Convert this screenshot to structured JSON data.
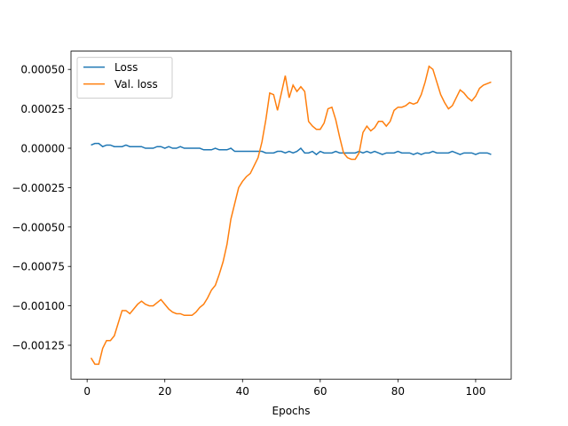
{
  "chart_data": {
    "type": "line",
    "xlabel": "Epochs",
    "x": [
      1,
      2,
      3,
      4,
      5,
      6,
      7,
      8,
      9,
      10,
      11,
      12,
      13,
      14,
      15,
      16,
      17,
      18,
      19,
      20,
      21,
      22,
      23,
      24,
      25,
      26,
      27,
      28,
      29,
      30,
      31,
      32,
      33,
      34,
      35,
      36,
      37,
      38,
      39,
      40,
      41,
      42,
      43,
      44,
      45,
      46,
      47,
      48,
      49,
      50,
      51,
      52,
      53,
      54,
      55,
      56,
      57,
      58,
      59,
      60,
      61,
      62,
      63,
      64,
      65,
      66,
      67,
      68,
      69,
      70,
      71,
      72,
      73,
      74,
      75,
      76,
      77,
      78,
      79,
      80,
      81,
      82,
      83,
      84,
      85,
      86,
      87,
      88,
      89,
      90,
      91,
      92,
      93,
      94,
      95,
      96,
      97,
      98,
      99,
      100,
      101,
      102,
      103,
      104
    ],
    "series": [
      {
        "name": "Loss",
        "color": "#1f77b4",
        "values": [
          2e-05,
          3e-05,
          3e-05,
          1e-05,
          2e-05,
          2e-05,
          1e-05,
          1e-05,
          1e-05,
          2e-05,
          1e-05,
          1e-05,
          1e-05,
          1e-05,
          0,
          0,
          0,
          1e-05,
          1e-05,
          0,
          1e-05,
          0,
          0,
          1e-05,
          0,
          0,
          0,
          0,
          0,
          -1e-05,
          -1e-05,
          -1e-05,
          0,
          -1e-05,
          -1e-05,
          -1e-05,
          0,
          -2e-05,
          -2e-05,
          -2e-05,
          -2e-05,
          -2e-05,
          -2e-05,
          -2e-05,
          -2e-05,
          -3e-05,
          -3e-05,
          -3e-05,
          -2e-05,
          -2e-05,
          -3e-05,
          -2e-05,
          -3e-05,
          -2e-05,
          0,
          -3e-05,
          -3e-05,
          -2e-05,
          -4e-05,
          -2e-05,
          -3e-05,
          -3e-05,
          -3e-05,
          -2e-05,
          -3e-05,
          -3e-05,
          -3e-05,
          -3e-05,
          -3e-05,
          -2e-05,
          -3e-05,
          -2e-05,
          -3e-05,
          -2e-05,
          -3e-05,
          -4e-05,
          -3e-05,
          -3e-05,
          -3e-05,
          -2e-05,
          -3e-05,
          -3e-05,
          -3e-05,
          -4e-05,
          -3e-05,
          -4e-05,
          -3e-05,
          -3e-05,
          -2e-05,
          -3e-05,
          -3e-05,
          -3e-05,
          -3e-05,
          -2e-05,
          -3e-05,
          -4e-05,
          -3e-05,
          -3e-05,
          -3e-05,
          -4e-05,
          -3e-05,
          -3e-05,
          -3e-05,
          -4e-05
        ]
      },
      {
        "name": "Val. loss",
        "color": "#ff7f0e",
        "values": [
          -0.00133,
          -0.00137,
          -0.00137,
          -0.00127,
          -0.00122,
          -0.00122,
          -0.00119,
          -0.00111,
          -0.00103,
          -0.00103,
          -0.00105,
          -0.00102,
          -0.00099,
          -0.00097,
          -0.00099,
          -0.001,
          -0.001,
          -0.00098,
          -0.00096,
          -0.00099,
          -0.00102,
          -0.00104,
          -0.00105,
          -0.00105,
          -0.00106,
          -0.00106,
          -0.00106,
          -0.00104,
          -0.00101,
          -0.00099,
          -0.00095,
          -0.0009,
          -0.00087,
          -0.0008,
          -0.00072,
          -0.00061,
          -0.00045,
          -0.00035,
          -0.00025,
          -0.00021,
          -0.00018,
          -0.00016,
          -0.00011,
          -6e-05,
          4e-05,
          0.00018,
          0.00035,
          0.00034,
          0.00024,
          0.00035,
          0.00046,
          0.00032,
          0.0004,
          0.00036,
          0.00039,
          0.00036,
          0.00017,
          0.00014,
          0.00012,
          0.00012,
          0.00016,
          0.00025,
          0.00026,
          0.00018,
          7e-05,
          -3e-05,
          -6e-05,
          -7e-05,
          -7e-05,
          -3e-05,
          0.0001,
          0.00014,
          0.00011,
          0.00013,
          0.00017,
          0.00017,
          0.00014,
          0.00017,
          0.00024,
          0.00026,
          0.00026,
          0.00027,
          0.00029,
          0.00028,
          0.00029,
          0.00034,
          0.00042,
          0.00052,
          0.0005,
          0.00042,
          0.00034,
          0.00029,
          0.00025,
          0.00027,
          0.00032,
          0.00037,
          0.00035,
          0.00032,
          0.0003,
          0.00033,
          0.00038,
          0.0004,
          0.00041,
          0.00042
        ]
      }
    ],
    "xlim": [
      -4.15,
      109.15
    ],
    "xticks": [
      0,
      20,
      40,
      60,
      80,
      100
    ],
    "ylim": [
      -0.001465,
      0.000616
    ],
    "yticks": [
      {
        "value": -0.00125,
        "label": "−0.00125"
      },
      {
        "value": -0.001,
        "label": "−0.00100"
      },
      {
        "value": -0.00075,
        "label": "−0.00075"
      },
      {
        "value": -0.0005,
        "label": "−0.00050"
      },
      {
        "value": -0.00025,
        "label": "−0.00025"
      },
      {
        "value": 0,
        "label": "0.00000"
      },
      {
        "value": 0.00025,
        "label": "0.00025"
      },
      {
        "value": 0.0005,
        "label": "0.00050"
      }
    ],
    "legend": "upper left"
  }
}
